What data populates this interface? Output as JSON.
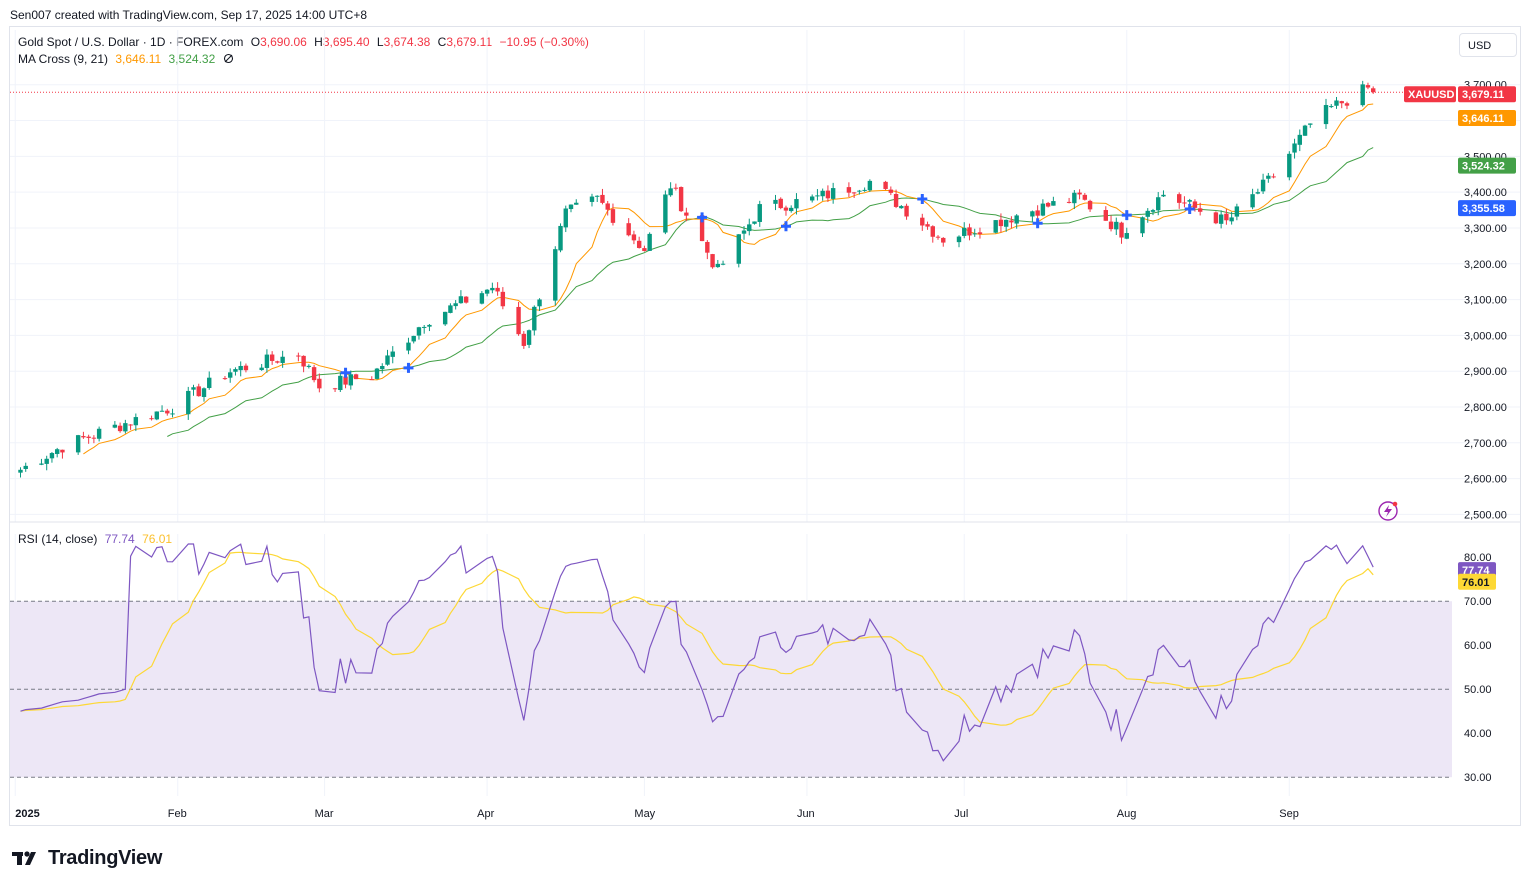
{
  "header": {
    "created_by": "Sen007 created with TradingView.com, Sep 17, 2025 14:00 UTC+8",
    "currency_button": "USD"
  },
  "legend": {
    "symbol_line": "Gold Spot / U.S. Dollar · 1D · FOREX.com",
    "o_label": "O",
    "o_value": "3,690.06",
    "h_label": "H",
    "h_value": "3,695.40",
    "l_label": "L",
    "l_value": "3,674.38",
    "c_label": "C",
    "c_value": "3,679.11",
    "change": "−10.95 (−0.30%)",
    "ma_label": "MA Cross (9, 21)",
    "ma_fast_value": "3,646.11",
    "ma_slow_value": "3,524.32",
    "ma_eye_icon": "hidden-eye-icon",
    "rsi_label": "RSI (14, close)",
    "rsi_value": "77.74",
    "rsi_ma_value": "76.01"
  },
  "price_badges": {
    "symbol": "XAUUSD",
    "last": "3,679.11",
    "ma_fast": "3,646.11",
    "ma_slow": "3,524.32",
    "cross": "3,355.58"
  },
  "rsi_badges": {
    "rsi": "77.74",
    "rsi_ma": "76.01"
  },
  "brand": {
    "name": "TradingView",
    "logo_icon": "tradingview-logo-icon"
  },
  "colors": {
    "up": "#089981",
    "down": "#f23645",
    "ma_fast": "#ff9800",
    "ma_slow": "#43a047",
    "rsi": "#7e57c2",
    "rsi_ma": "#fdd835",
    "cross": "#2962ff",
    "rsi_band": "#ede7f6"
  },
  "chart_data": {
    "type": "candlestick",
    "title": "Gold Spot / U.S. Dollar · 1D · FOREX.com",
    "price_axis": {
      "ticks": [
        "2,500.00",
        "2,600.00",
        "2,700.00",
        "2,800.00",
        "2,900.00",
        "3,000.00",
        "3,100.00",
        "3,200.00",
        "3,300.00",
        "3,400.00",
        "3,500.00",
        "3,600.00",
        "3,700.00"
      ],
      "ylim": [
        2490,
        3730
      ]
    },
    "time_axis": {
      "labels": [
        "2025",
        "Feb",
        "Mar",
        "Apr",
        "May",
        "Jun",
        "Jul",
        "Aug",
        "Sep"
      ]
    },
    "ohlc_anchors": [
      {
        "date": "2025-01-02",
        "close": 2625
      },
      {
        "date": "2025-01-10",
        "close": 2690
      },
      {
        "date": "2025-01-22",
        "close": 2755
      },
      {
        "date": "2025-01-31",
        "close": 2800
      },
      {
        "date": "2025-02-11",
        "close": 2900
      },
      {
        "date": "2025-02-24",
        "close": 2950
      },
      {
        "date": "2025-02-28",
        "close": 2858
      },
      {
        "date": "2025-03-10",
        "close": 2888
      },
      {
        "date": "2025-03-20",
        "close": 3040
      },
      {
        "date": "2025-04-02",
        "close": 3135
      },
      {
        "date": "2025-04-08",
        "close": 2980
      },
      {
        "date": "2025-04-16",
        "close": 3340
      },
      {
        "date": "2025-04-22",
        "close": 3380
      },
      {
        "date": "2025-05-01",
        "close": 3240
      },
      {
        "date": "2025-05-06",
        "close": 3420
      },
      {
        "date": "2025-05-15",
        "close": 3180
      },
      {
        "date": "2025-05-23",
        "close": 3355
      },
      {
        "date": "2025-06-02",
        "close": 3380
      },
      {
        "date": "2025-06-13",
        "close": 3430
      },
      {
        "date": "2025-06-27",
        "close": 3270
      },
      {
        "date": "2025-07-14",
        "close": 3350
      },
      {
        "date": "2025-07-23",
        "close": 3385
      },
      {
        "date": "2025-07-31",
        "close": 3290
      },
      {
        "date": "2025-08-08",
        "close": 3395
      },
      {
        "date": "2025-08-20",
        "close": 3315
      },
      {
        "date": "2025-08-29",
        "close": 3445
      },
      {
        "date": "2025-09-05",
        "close": 3590
      },
      {
        "date": "2025-09-09",
        "close": 3635
      },
      {
        "date": "2025-09-16",
        "close": 3690
      },
      {
        "date": "2025-09-17",
        "close": 3679.11
      }
    ],
    "last_candle": {
      "open": 3690.06,
      "high": 3695.4,
      "low": 3674.38,
      "close": 3679.11
    },
    "ma_fast_last": 3646.11,
    "ma_slow_last": 3524.32,
    "rsi": {
      "ticks": [
        "30.00",
        "40.00",
        "50.00",
        "60.00",
        "70.00",
        "80.00"
      ],
      "ylim": [
        28,
        83
      ],
      "upper_band": 70,
      "lower_band": 30,
      "mid": 50,
      "last": 77.74,
      "ma_last": 76.01
    }
  }
}
